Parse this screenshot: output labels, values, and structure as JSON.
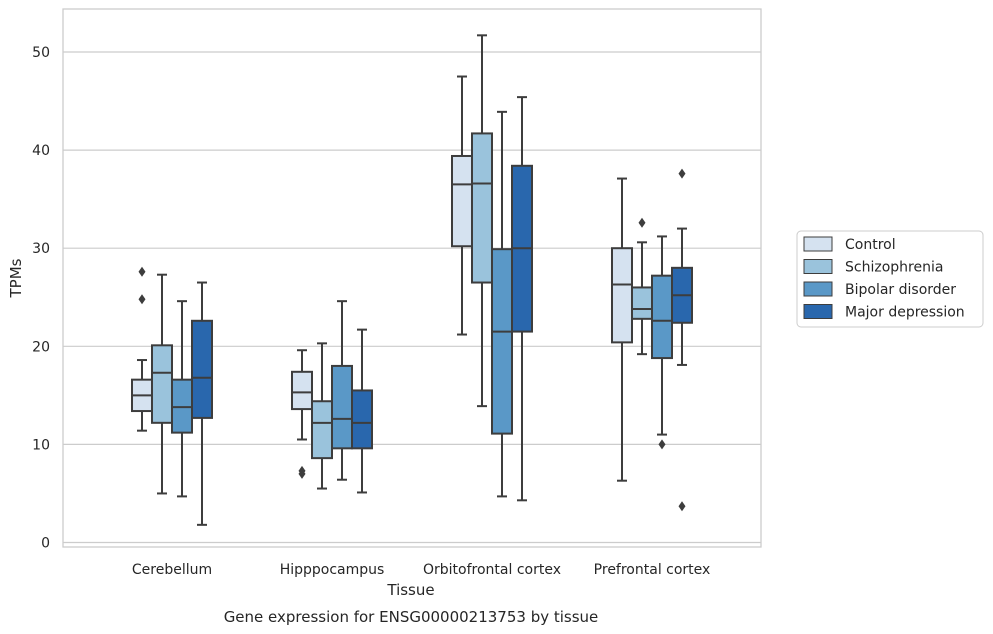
{
  "chart_data": {
    "type": "box",
    "xlabel": "Tissue",
    "ylabel": "TPMs",
    "caption": "Gene expression for ENSG00000213753 by tissue",
    "ylim": [
      -0.5,
      54.2
    ],
    "yticks": [
      0,
      10,
      20,
      30,
      40,
      50
    ],
    "grid": true,
    "legend_position": "right",
    "categories": [
      "Cerebellum",
      "Hipppocampus",
      "Orbitofrontal cortex",
      "Prefrontal cortex"
    ],
    "series": [
      {
        "name": "Control",
        "color": "#d5e2f0",
        "boxes": [
          {
            "whisker_low": 11.4,
            "q1": 13.4,
            "median": 15.0,
            "q3": 16.6,
            "whisker_high": 18.6,
            "outliers": [
              24.8,
              27.6
            ]
          },
          {
            "whisker_low": 10.5,
            "q1": 13.6,
            "median": 15.3,
            "q3": 17.4,
            "whisker_high": 19.6,
            "outliers": [
              7.0,
              7.3
            ]
          },
          {
            "whisker_low": 21.2,
            "q1": 30.2,
            "median": 36.5,
            "q3": 39.4,
            "whisker_high": 47.5,
            "outliers": []
          },
          {
            "whisker_low": 6.3,
            "q1": 20.4,
            "median": 26.3,
            "q3": 30.0,
            "whisker_high": 37.1,
            "outliers": []
          }
        ]
      },
      {
        "name": "Schizophrenia",
        "color": "#9ac3dc",
        "boxes": [
          {
            "whisker_low": 5.0,
            "q1": 12.2,
            "median": 17.3,
            "q3": 20.1,
            "whisker_high": 27.3,
            "outliers": []
          },
          {
            "whisker_low": 5.5,
            "q1": 8.6,
            "median": 12.2,
            "q3": 14.4,
            "whisker_high": 20.3,
            "outliers": []
          },
          {
            "whisker_low": 13.9,
            "q1": 26.5,
            "median": 36.6,
            "q3": 41.7,
            "whisker_high": 51.7,
            "outliers": []
          },
          {
            "whisker_low": 19.2,
            "q1": 22.8,
            "median": 23.8,
            "q3": 26.0,
            "whisker_high": 30.6,
            "outliers": [
              32.6
            ]
          }
        ]
      },
      {
        "name": "Bipolar disorder",
        "color": "#5a98c7",
        "boxes": [
          {
            "whisker_low": 4.7,
            "q1": 11.2,
            "median": 13.8,
            "q3": 16.6,
            "whisker_high": 24.6,
            "outliers": []
          },
          {
            "whisker_low": 6.4,
            "q1": 9.6,
            "median": 12.6,
            "q3": 18.0,
            "whisker_high": 24.6,
            "outliers": []
          },
          {
            "whisker_low": 4.7,
            "q1": 11.1,
            "median": 21.5,
            "q3": 29.9,
            "whisker_high": 43.9,
            "outliers": []
          },
          {
            "whisker_low": 11.0,
            "q1": 18.8,
            "median": 22.6,
            "q3": 27.2,
            "whisker_high": 31.2,
            "outliers": [
              10.0
            ]
          }
        ]
      },
      {
        "name": "Major depression",
        "color": "#2967ad",
        "boxes": [
          {
            "whisker_low": 1.8,
            "q1": 12.7,
            "median": 16.8,
            "q3": 22.6,
            "whisker_high": 26.5,
            "outliers": []
          },
          {
            "whisker_low": 5.1,
            "q1": 9.6,
            "median": 12.2,
            "q3": 15.5,
            "whisker_high": 21.7,
            "outliers": []
          },
          {
            "whisker_low": 4.3,
            "q1": 21.5,
            "median": 30.0,
            "q3": 38.4,
            "whisker_high": 45.4,
            "outliers": []
          },
          {
            "whisker_low": 18.1,
            "q1": 22.4,
            "median": 25.2,
            "q3": 28.0,
            "whisker_high": 32.0,
            "outliers": [
              3.7,
              37.6
            ]
          }
        ]
      }
    ]
  }
}
